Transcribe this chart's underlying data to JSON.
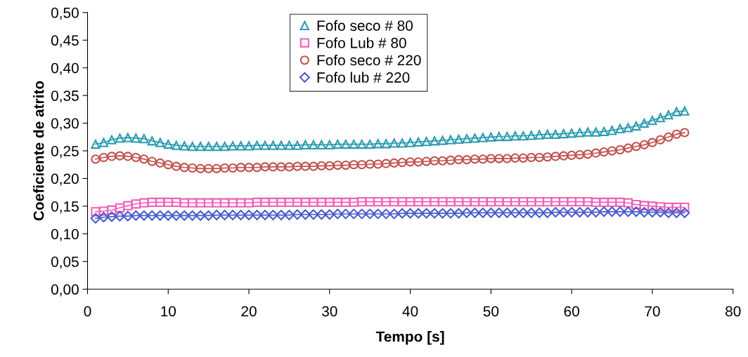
{
  "chart_data": {
    "type": "line",
    "xlabel": "Tempo [s]",
    "ylabel": "Coeficiente de atrito",
    "x": [
      1,
      2,
      3,
      4,
      5,
      6,
      7,
      8,
      9,
      10,
      11,
      12,
      13,
      14,
      15,
      16,
      17,
      18,
      19,
      20,
      21,
      22,
      23,
      24,
      25,
      26,
      27,
      28,
      29,
      30,
      31,
      32,
      33,
      34,
      35,
      36,
      37,
      38,
      39,
      40,
      41,
      42,
      43,
      44,
      45,
      46,
      47,
      48,
      49,
      50,
      51,
      52,
      53,
      54,
      55,
      56,
      57,
      58,
      59,
      60,
      61,
      62,
      63,
      64,
      65,
      66,
      67,
      68,
      69,
      70,
      71,
      72,
      73,
      74
    ],
    "series": [
      {
        "name": "Fofo seco # 80",
        "color": "#2a9bb0",
        "marker": "triangle",
        "values": [
          0.262,
          0.265,
          0.27,
          0.273,
          0.274,
          0.273,
          0.272,
          0.268,
          0.265,
          0.262,
          0.26,
          0.259,
          0.258,
          0.258,
          0.258,
          0.258,
          0.258,
          0.259,
          0.259,
          0.259,
          0.26,
          0.26,
          0.26,
          0.26,
          0.26,
          0.26,
          0.261,
          0.261,
          0.261,
          0.261,
          0.262,
          0.262,
          0.262,
          0.262,
          0.262,
          0.263,
          0.263,
          0.264,
          0.264,
          0.265,
          0.266,
          0.267,
          0.268,
          0.269,
          0.27,
          0.271,
          0.272,
          0.273,
          0.274,
          0.275,
          0.276,
          0.276,
          0.277,
          0.277,
          0.278,
          0.279,
          0.28,
          0.28,
          0.281,
          0.282,
          0.283,
          0.284,
          0.284,
          0.285,
          0.287,
          0.29,
          0.292,
          0.295,
          0.3,
          0.305,
          0.31,
          0.315,
          0.321,
          0.322
        ]
      },
      {
        "name": "Fofo Lub # 80",
        "color": "#f060b8",
        "marker": "square",
        "values": [
          0.14,
          0.141,
          0.143,
          0.147,
          0.151,
          0.154,
          0.156,
          0.157,
          0.157,
          0.157,
          0.157,
          0.156,
          0.156,
          0.156,
          0.156,
          0.156,
          0.156,
          0.156,
          0.156,
          0.156,
          0.157,
          0.157,
          0.157,
          0.157,
          0.157,
          0.157,
          0.157,
          0.157,
          0.157,
          0.157,
          0.157,
          0.157,
          0.157,
          0.158,
          0.158,
          0.158,
          0.158,
          0.158,
          0.158,
          0.158,
          0.158,
          0.158,
          0.158,
          0.158,
          0.158,
          0.158,
          0.158,
          0.158,
          0.158,
          0.158,
          0.158,
          0.158,
          0.158,
          0.158,
          0.158,
          0.158,
          0.158,
          0.158,
          0.158,
          0.158,
          0.158,
          0.158,
          0.157,
          0.157,
          0.157,
          0.157,
          0.156,
          0.153,
          0.151,
          0.15,
          0.149,
          0.148,
          0.148,
          0.148
        ]
      },
      {
        "name": "Fofo seco # 220",
        "color": "#c0504d",
        "marker": "circle",
        "values": [
          0.235,
          0.238,
          0.24,
          0.241,
          0.24,
          0.238,
          0.235,
          0.231,
          0.228,
          0.225,
          0.222,
          0.22,
          0.219,
          0.218,
          0.218,
          0.218,
          0.219,
          0.219,
          0.22,
          0.22,
          0.22,
          0.221,
          0.221,
          0.221,
          0.221,
          0.222,
          0.222,
          0.222,
          0.223,
          0.223,
          0.224,
          0.224,
          0.225,
          0.225,
          0.226,
          0.226,
          0.227,
          0.228,
          0.229,
          0.23,
          0.23,
          0.231,
          0.232,
          0.232,
          0.233,
          0.234,
          0.234,
          0.235,
          0.235,
          0.236,
          0.236,
          0.236,
          0.237,
          0.237,
          0.238,
          0.238,
          0.239,
          0.24,
          0.241,
          0.242,
          0.243,
          0.244,
          0.246,
          0.248,
          0.25,
          0.252,
          0.255,
          0.258,
          0.261,
          0.265,
          0.27,
          0.275,
          0.28,
          0.283
        ]
      },
      {
        "name": "Fofo lub # 220",
        "color": "#4a5cc8",
        "marker": "diamond",
        "values": [
          0.128,
          0.13,
          0.131,
          0.132,
          0.132,
          0.133,
          0.133,
          0.133,
          0.133,
          0.133,
          0.133,
          0.133,
          0.133,
          0.133,
          0.133,
          0.134,
          0.134,
          0.134,
          0.134,
          0.134,
          0.134,
          0.134,
          0.134,
          0.134,
          0.134,
          0.135,
          0.135,
          0.135,
          0.135,
          0.135,
          0.136,
          0.136,
          0.136,
          0.136,
          0.136,
          0.136,
          0.136,
          0.136,
          0.137,
          0.137,
          0.137,
          0.137,
          0.137,
          0.137,
          0.137,
          0.137,
          0.138,
          0.138,
          0.138,
          0.138,
          0.138,
          0.138,
          0.138,
          0.138,
          0.138,
          0.138,
          0.138,
          0.139,
          0.139,
          0.139,
          0.139,
          0.139,
          0.139,
          0.14,
          0.14,
          0.14,
          0.14,
          0.14,
          0.139,
          0.139,
          0.139,
          0.138,
          0.138,
          0.138
        ]
      }
    ],
    "xlim": [
      0,
      80
    ],
    "xticks": [
      0,
      10,
      20,
      30,
      40,
      50,
      60,
      70,
      80
    ],
    "ylim": [
      0,
      0.5
    ],
    "yticks": [
      {
        "value": 0,
        "label": "0,00"
      },
      {
        "value": 0.05,
        "label": "0,05"
      },
      {
        "value": 0.1,
        "label": "0,10"
      },
      {
        "value": 0.15,
        "label": "0,15"
      },
      {
        "value": 0.2,
        "label": "0,20"
      },
      {
        "value": 0.25,
        "label": "0,25"
      },
      {
        "value": 0.3,
        "label": "0,30"
      },
      {
        "value": 0.35,
        "label": "0,35"
      },
      {
        "value": 0.4,
        "label": "0,40"
      },
      {
        "value": 0.45,
        "label": "0,45"
      },
      {
        "value": 0.5,
        "label": "0,50"
      }
    ],
    "legend": "top"
  }
}
